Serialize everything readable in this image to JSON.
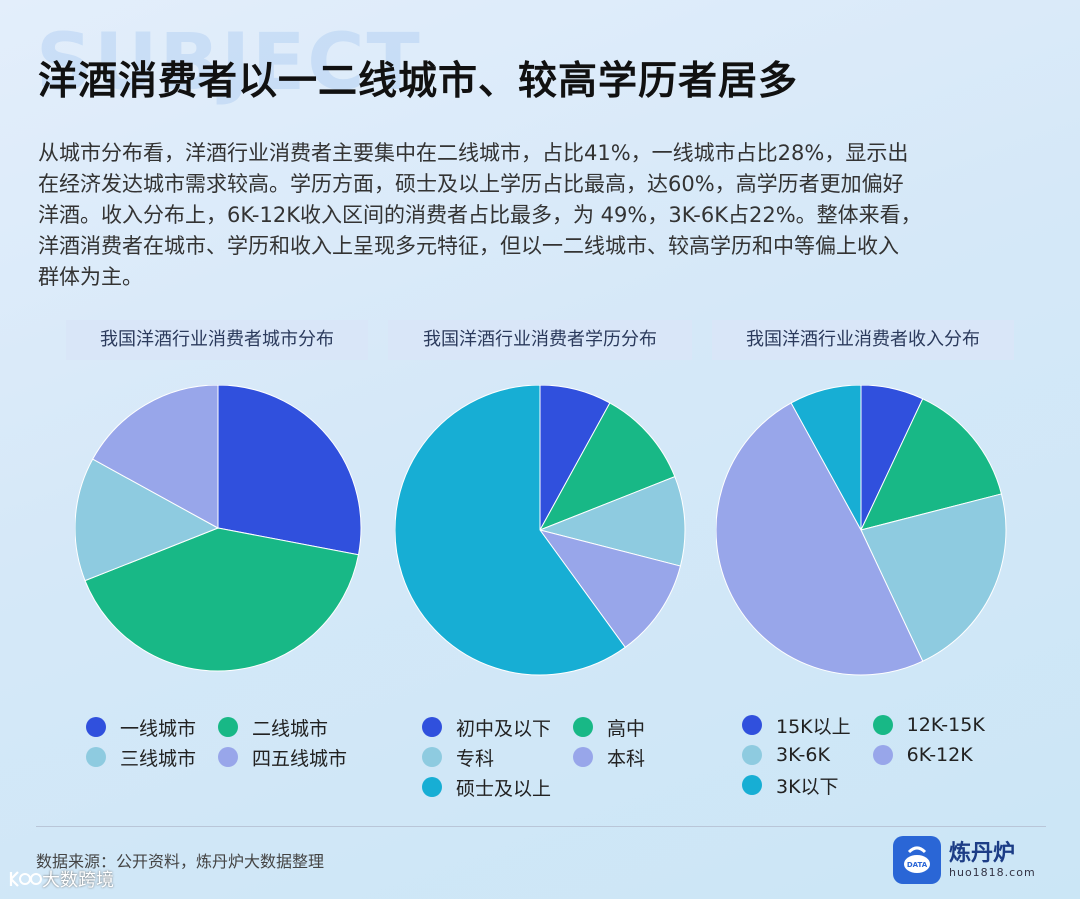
{
  "watermark_text": "SUBJECT",
  "title": "洋酒消费者以一二线城市、较高学历者居多",
  "body_lines": [
    "从城市分布看，洋酒行业消费者主要集中在二线城市，占比41%，一线城市占比28%，显示出",
    "在经济发达城市需求较高。学历方面，硕士及以上学历占比最高，达60%，高学历者更加偏好",
    "洋酒。收入分布上，6K-12K收入区间的消费者占比最多，为 49%，3K-6K占22%。整体来看，",
    "洋酒消费者在城市、学历和收入上呈现多元特征，但以一二线城市、较高学历和中等偏上收入",
    "群体为主。"
  ],
  "colors": {
    "blue": "#3050dd",
    "green": "#18b886",
    "lightblue": "#8ecbe0",
    "lavender": "#98a6ea",
    "teal": "#17aed4"
  },
  "chart_data": [
    {
      "type": "pie",
      "title": "我国洋酒行业消费者城市分布",
      "labels": [
        "一线城市",
        "二线城市",
        "三线城市",
        "四五线城市"
      ],
      "values": [
        28,
        41,
        14,
        17
      ],
      "colors": [
        "#3050dd",
        "#18b886",
        "#8ecbe0",
        "#98a6ea"
      ],
      "legend": "bottom"
    },
    {
      "type": "pie",
      "title": "我国洋酒行业消费者学历分布",
      "labels": [
        "初中及以下",
        "高中",
        "专科",
        "本科",
        "硕士及以上"
      ],
      "values": [
        8,
        11,
        10,
        11,
        60
      ],
      "colors": [
        "#3050dd",
        "#18b886",
        "#8ecbe0",
        "#98a6ea",
        "#17aed4"
      ],
      "legend": "bottom"
    },
    {
      "type": "pie",
      "title": "我国洋酒行业消费者收入分布",
      "labels": [
        "15K以上",
        "12K-15K",
        "3K-6K",
        "6K-12K",
        "3K以下"
      ],
      "values": [
        7,
        14,
        22,
        49,
        8
      ],
      "colors": [
        "#3050dd",
        "#18b886",
        "#8ecbe0",
        "#98a6ea",
        "#17aed4"
      ],
      "legend": "bottom"
    }
  ],
  "source": "数据来源：公开资料，炼丹炉大数据整理",
  "bottom_watermark": "大数跨境",
  "logo": {
    "name": "炼丹炉",
    "url": "huo1818.com",
    "badge": "DATA"
  }
}
